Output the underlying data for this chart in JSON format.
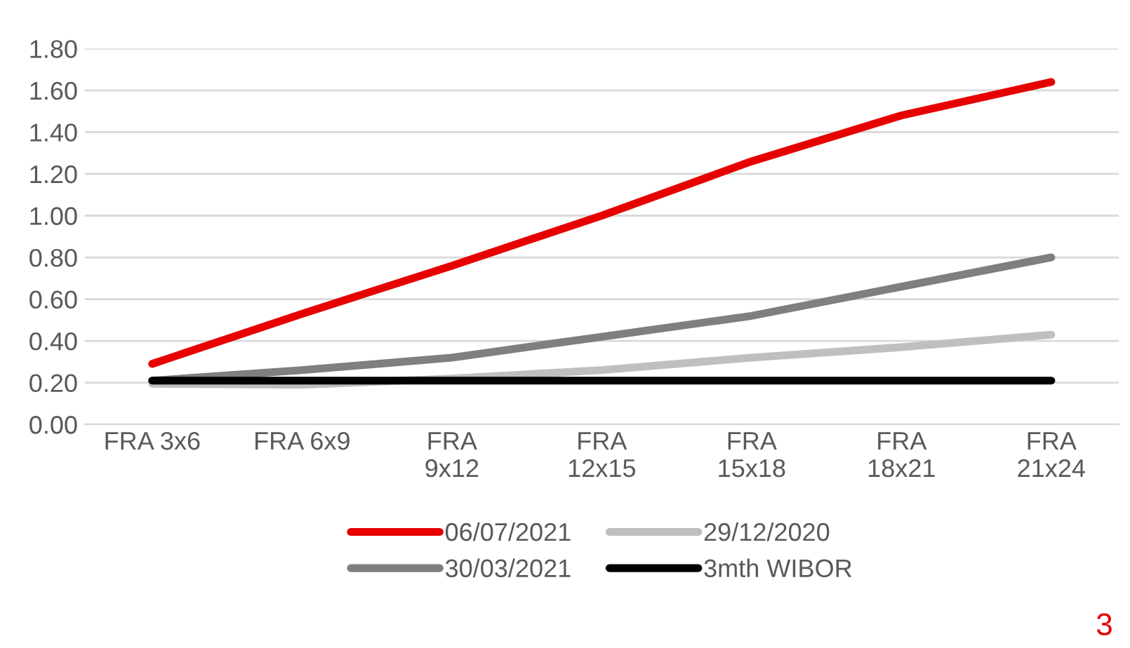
{
  "chart_data": {
    "type": "line",
    "categories": [
      "FRA 3x6",
      "FRA 6x9",
      "FRA\n9x12",
      "FRA\n12x15",
      "FRA\n15x18",
      "FRA\n18x21",
      "FRA\n21x24"
    ],
    "series": [
      {
        "name": "06/07/2021",
        "color": "#e60000",
        "values": [
          0.29,
          0.53,
          0.76,
          1.0,
          1.26,
          1.48,
          1.64
        ]
      },
      {
        "name": "30/03/2021",
        "color": "#7f7f7f",
        "values": [
          0.21,
          0.26,
          0.32,
          0.42,
          0.52,
          0.66,
          0.8
        ]
      },
      {
        "name": "29/12/2020",
        "color": "#bfbfbf",
        "values": [
          0.195,
          0.19,
          0.22,
          0.26,
          0.32,
          0.37,
          0.43
        ]
      },
      {
        "name": "3mth WIBOR",
        "color": "#000000",
        "values": [
          0.21,
          0.21,
          0.21,
          0.21,
          0.21,
          0.21,
          0.21
        ]
      }
    ],
    "ylim": [
      0,
      1.8
    ],
    "yticks": [
      {
        "value": 0,
        "label": "0.00"
      },
      {
        "value": 0.2,
        "label": "0.20"
      },
      {
        "value": 0.4,
        "label": "0.40"
      },
      {
        "value": 0.6,
        "label": "0.60"
      },
      {
        "value": 0.8,
        "label": "0.80"
      },
      {
        "value": 1.0,
        "label": "1.00"
      },
      {
        "value": 1.2,
        "label": "1.20"
      },
      {
        "value": 1.4,
        "label": "1.40"
      },
      {
        "value": 1.6,
        "label": "1.60"
      },
      {
        "value": 1.8,
        "label": "1.80"
      }
    ],
    "grid": "y",
    "legend": "bottom",
    "marker": "none",
    "line_style": "solid",
    "annotations": [
      "3"
    ]
  }
}
